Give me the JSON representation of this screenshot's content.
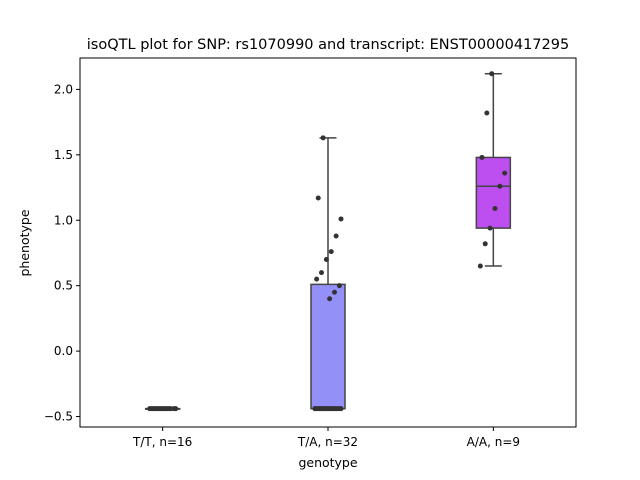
{
  "chart_data": {
    "type": "box",
    "title": "isoQTL plot for SNP: rs1070990 and transcript: ENST00000417295",
    "xlabel": "genotype",
    "ylabel": "phenotype",
    "ylim": [
      -0.58,
      2.24
    ],
    "yticks": [
      -0.5,
      0.0,
      0.5,
      1.0,
      1.5,
      2.0
    ],
    "ytick_labels": [
      "−0.5",
      "0.0",
      "0.5",
      "1.0",
      "1.5",
      "2.0"
    ],
    "grid": false,
    "categories": [
      "T/T, n=16",
      "T/A, n=32",
      "A/A, n=9"
    ],
    "boxes": [
      {
        "category": "T/T, n=16",
        "color": "#8da0f8",
        "whisker_low": -0.44,
        "q1": -0.44,
        "median": -0.44,
        "q3": -0.44,
        "whisker_high": -0.44
      },
      {
        "category": "T/A, n=32",
        "color": "#9391f8",
        "whisker_low": -0.44,
        "q1": -0.44,
        "median": -0.44,
        "q3": 0.51,
        "whisker_high": 1.63
      },
      {
        "category": "A/A, n=9",
        "color": "#bd4ff0",
        "whisker_low": 0.65,
        "q1": 0.94,
        "median": 1.26,
        "q3": 1.48,
        "whisker_high": 2.12
      }
    ],
    "points": [
      {
        "category": "T/T, n=16",
        "values": [
          -0.44,
          -0.44,
          -0.44,
          -0.44,
          -0.44,
          -0.44,
          -0.44,
          -0.44,
          -0.44,
          -0.44,
          -0.44,
          -0.44,
          -0.44,
          -0.44,
          -0.44,
          -0.44
        ]
      },
      {
        "category": "T/A, n=32",
        "values": [
          -0.44,
          -0.44,
          -0.44,
          -0.44,
          -0.44,
          -0.44,
          -0.44,
          -0.44,
          -0.44,
          -0.44,
          -0.44,
          -0.44,
          -0.44,
          -0.44,
          -0.44,
          -0.44,
          -0.44,
          -0.44,
          -0.44,
          -0.44,
          0.4,
          0.45,
          0.5,
          0.55,
          0.6,
          0.7,
          0.76,
          0.88,
          1.01,
          1.17,
          1.63,
          -0.44
        ]
      },
      {
        "category": "A/A, n=9",
        "values": [
          0.65,
          0.82,
          0.94,
          1.09,
          1.26,
          1.36,
          1.48,
          1.82,
          2.12
        ]
      }
    ]
  }
}
